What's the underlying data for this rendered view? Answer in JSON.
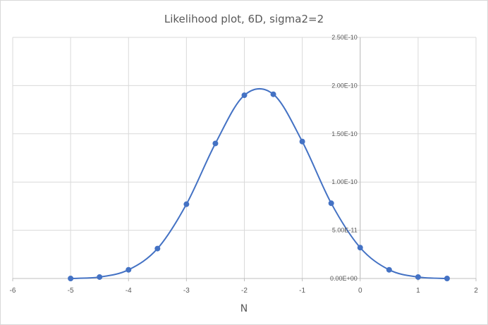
{
  "chart_data": {
    "type": "scatter",
    "title": "Likelihood plot, 6D, sigma2=2",
    "xlabel": "N",
    "ylabel": "",
    "xlim": [
      -6,
      2
    ],
    "ylim": [
      0,
      2.5e-10
    ],
    "xticks": [
      "-6",
      "-5",
      "-4",
      "-3",
      "-2",
      "-1",
      "0",
      "1",
      "2"
    ],
    "yticks": [
      "0.00E+00",
      "5.00E-11",
      "1.00E-10",
      "1.50E-10",
      "2.00E-10",
      "2.50E-10"
    ],
    "grid": true,
    "smooth_line": true,
    "series_color": "#4472c4",
    "series": [
      {
        "x": [
          -5,
          -4.5,
          -4,
          -3.5,
          -3,
          -2.5,
          -2,
          -1.5,
          -1,
          -0.5,
          0,
          0.5,
          1,
          1.5
        ],
        "y": [
          0.0,
          1.5e-12,
          9e-12,
          3.1e-11,
          7.7e-11,
          1.4e-10,
          1.9e-10,
          1.91e-10,
          1.42e-10,
          7.8e-11,
          3.2e-11,
          9e-12,
          1.5e-12,
          0.0
        ]
      }
    ]
  }
}
